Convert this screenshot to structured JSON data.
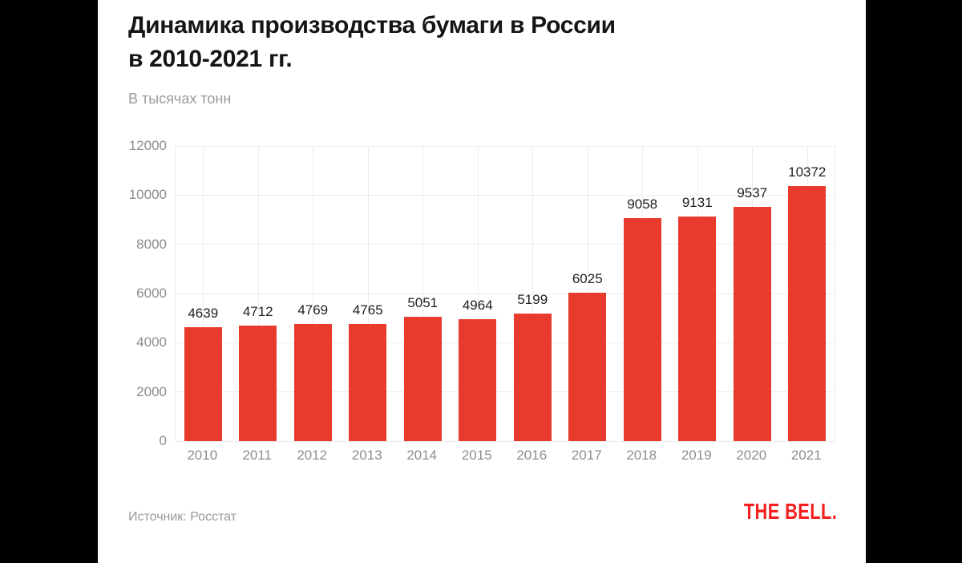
{
  "colors": {
    "page_background": "#000000",
    "card_background": "#ffffff",
    "bar": "#e83a2d",
    "title_text": "#151515",
    "muted_text": "#9a9a9a",
    "axis_text": "#8d8d8d",
    "value_label_text": "#1f1f1f",
    "gridline": "#ececec",
    "brand_red": "#f41f1f"
  },
  "header": {
    "title_line1": "Динамика производства бумаги в России",
    "title_line2": "в 2010-2021 гг.",
    "subtitle": "В тысячах тонн"
  },
  "footer": {
    "source": "Источник: Росстат",
    "brand": "THE BELL."
  },
  "chart_data": {
    "type": "bar",
    "title": "Динамика производства бумаги в России в 2010-2021 гг.",
    "subtitle": "В тысячах тонн",
    "categories": [
      "2010",
      "2011",
      "2012",
      "2013",
      "2014",
      "2015",
      "2016",
      "2017",
      "2018",
      "2019",
      "2020",
      "2021"
    ],
    "values": [
      4639,
      4712,
      4769,
      4765,
      5051,
      4964,
      5199,
      6025,
      9058,
      9131,
      9537,
      10372
    ],
    "xlabel": "",
    "ylabel": "",
    "ylim": [
      0,
      12000
    ],
    "yticks": [
      0,
      2000,
      4000,
      6000,
      8000,
      10000,
      12000
    ],
    "grid": true,
    "value_labels": true,
    "legend": "none",
    "source": "Росстат"
  }
}
